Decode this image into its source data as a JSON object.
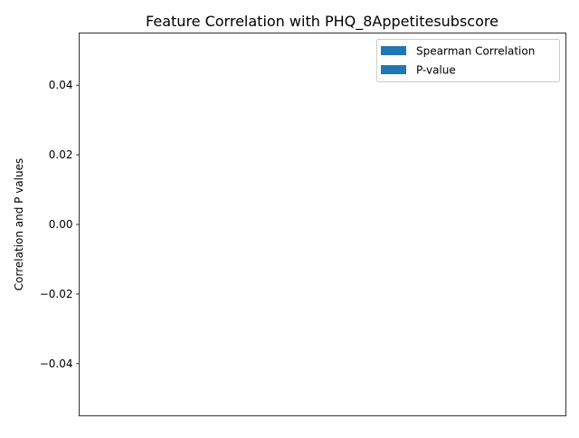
{
  "chart_data": {
    "type": "bar",
    "title": "Feature Correlation with PHQ_8Appetitesubscore",
    "xlabel": "",
    "ylabel": "Correlation and P values",
    "categories": [],
    "series": [
      {
        "name": "Spearman Correlation",
        "values": [],
        "color": "#1f77b4"
      },
      {
        "name": "P-value",
        "values": [],
        "color": "#1f77b4"
      }
    ],
    "ylim": [
      -0.055,
      0.055
    ],
    "yticks": [
      {
        "value": 0.04,
        "label": "0.04"
      },
      {
        "value": 0.02,
        "label": "0.02"
      },
      {
        "value": 0.0,
        "label": "0.00"
      },
      {
        "value": -0.02,
        "label": "−0.02"
      },
      {
        "value": -0.04,
        "label": "−0.04"
      }
    ],
    "grid": false,
    "legend_position": "top-right"
  }
}
